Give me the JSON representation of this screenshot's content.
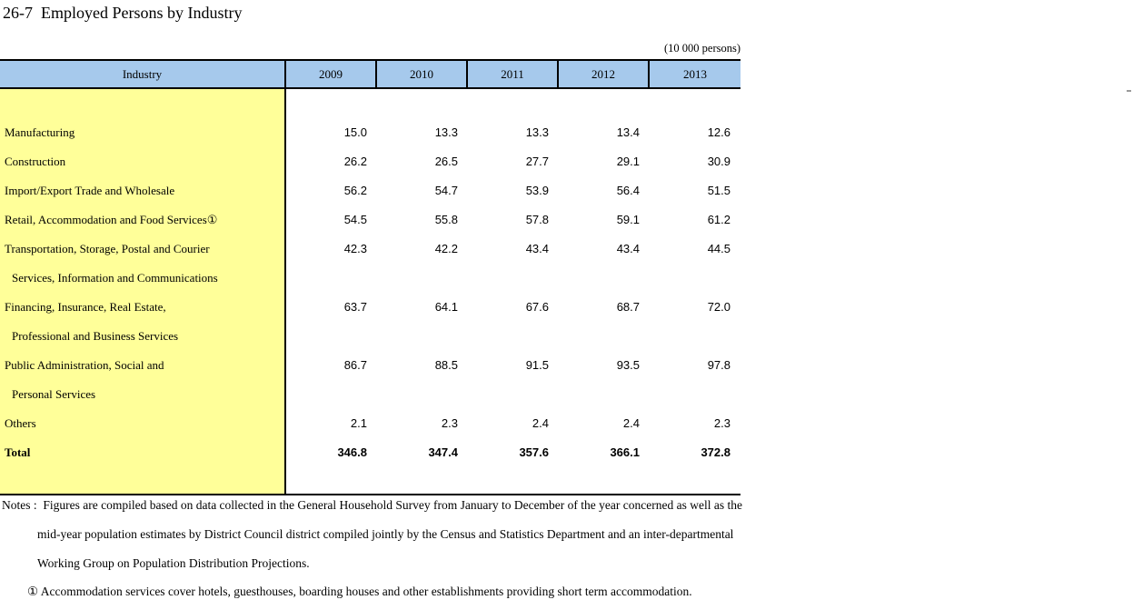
{
  "title": "26-7  Employed Persons by Industry",
  "unit_label": "(10 000 persons)",
  "table": {
    "header": {
      "industry": "Industry",
      "years": [
        "2009",
        "2010",
        "2011",
        "2012",
        "2013"
      ]
    },
    "rows": [
      {
        "label": "Manufacturing",
        "indent": false,
        "bold": false,
        "values": [
          "15.0",
          "13.3",
          "13.3",
          "13.4",
          "12.6"
        ]
      },
      {
        "label": "Construction",
        "indent": false,
        "bold": false,
        "values": [
          "26.2",
          "26.5",
          "27.7",
          "29.1",
          "30.9"
        ]
      },
      {
        "label": "Import/Export Trade and Wholesale",
        "indent": false,
        "bold": false,
        "values": [
          "56.2",
          "54.7",
          "53.9",
          "56.4",
          "51.5"
        ]
      },
      {
        "label": "Retail, Accommodation and Food Services①",
        "indent": false,
        "bold": false,
        "values": [
          "54.5",
          "55.8",
          "57.8",
          "59.1",
          "61.2"
        ]
      },
      {
        "label": "Transportation, Storage, Postal and Courier",
        "indent": false,
        "bold": false,
        "values": [
          "42.3",
          "42.2",
          "43.4",
          "43.4",
          "44.5"
        ]
      },
      {
        "label": "Services, Information and Communications",
        "indent": true,
        "bold": false,
        "values": []
      },
      {
        "label": "Financing, Insurance, Real Estate,",
        "indent": false,
        "bold": false,
        "values": [
          "63.7",
          "64.1",
          "67.6",
          "68.7",
          "72.0"
        ]
      },
      {
        "label": "Professional and Business Services",
        "indent": true,
        "bold": false,
        "values": []
      },
      {
        "label": "Public Administration, Social and",
        "indent": false,
        "bold": false,
        "values": [
          "86.7",
          "88.5",
          "91.5",
          "93.5",
          "97.8"
        ]
      },
      {
        "label": "Personal Services",
        "indent": true,
        "bold": false,
        "values": []
      },
      {
        "label": "Others",
        "indent": false,
        "bold": false,
        "values": [
          "2.1",
          "2.3",
          "2.4",
          "2.4",
          "2.3"
        ]
      },
      {
        "label": "Total",
        "indent": false,
        "bold": true,
        "values": [
          "346.8",
          "347.4",
          "357.6",
          "366.1",
          "372.8"
        ]
      }
    ]
  },
  "notes": {
    "lines": [
      {
        "text": "Notes :  Figures are compiled based on data collected in the General Household Survey from January to December of the year concerned as well as the"
      },
      {
        "text": "mid-year population estimates by District Council district compiled jointly by the Census and Statistics Department and an inter-departmental"
      },
      {
        "text": "Working Group on Population Distribution Projections."
      },
      {
        "text": "① Accommodation services cover hotels, guesthouses, boarding houses and other establishments providing short term accommodation."
      }
    ]
  },
  "colors": {
    "header_bg": "#a6c9ec",
    "industry_column_bg": "#ffff99",
    "border": "#000000"
  }
}
